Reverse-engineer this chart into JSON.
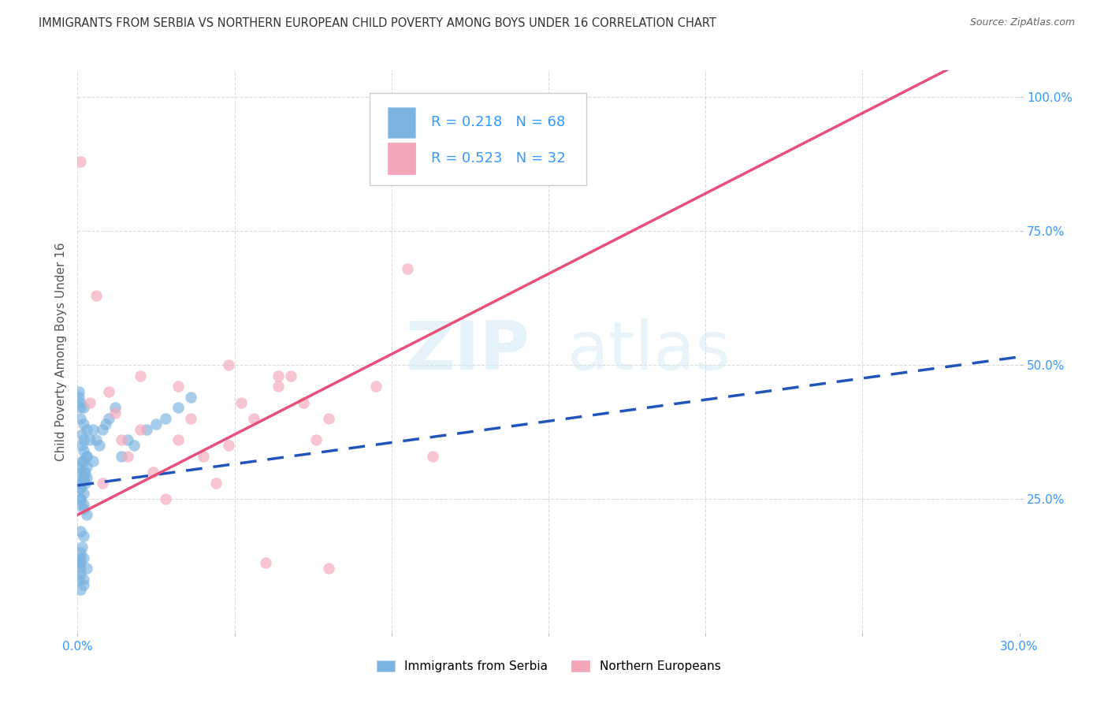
{
  "title": "IMMIGRANTS FROM SERBIA VS NORTHERN EUROPEAN CHILD POVERTY AMONG BOYS UNDER 16 CORRELATION CHART",
  "source": "Source: ZipAtlas.com",
  "ylabel": "Child Poverty Among Boys Under 16",
  "xlim": [
    0.0,
    0.3
  ],
  "ylim": [
    0.0,
    1.05
  ],
  "ytick_vals": [
    0.25,
    0.5,
    0.75,
    1.0
  ],
  "ytick_labels": [
    "25.0%",
    "50.0%",
    "75.0%",
    "100.0%"
  ],
  "xtick_vals": [
    0.0,
    0.05,
    0.1,
    0.15,
    0.2,
    0.25,
    0.3
  ],
  "xtick_labels": [
    "0.0%",
    "",
    "",
    "",
    "",
    "",
    "30.0%"
  ],
  "serbia_R": 0.218,
  "serbia_N": 68,
  "northern_R": 0.523,
  "northern_N": 32,
  "serbia_color": "#7ab3e0",
  "northern_color": "#f4a7b9",
  "serbia_line_color": "#2255bb",
  "northern_line_color": "#e8507a",
  "serbia_scatter_x": [
    0.0005,
    0.001,
    0.0008,
    0.0015,
    0.001,
    0.002,
    0.0012,
    0.0018,
    0.001,
    0.0005,
    0.002,
    0.0025,
    0.0015,
    0.003,
    0.002,
    0.0025,
    0.002,
    0.003,
    0.002,
    0.001,
    0.0005,
    0.001,
    0.0008,
    0.002,
    0.0015,
    0.001,
    0.003,
    0.002,
    0.001,
    0.002,
    0.002,
    0.003,
    0.002,
    0.001,
    0.0015,
    0.003,
    0.002,
    0.0005,
    0.002,
    0.001,
    0.005,
    0.004,
    0.003,
    0.006,
    0.005,
    0.008,
    0.007,
    0.01,
    0.012,
    0.009,
    0.0005,
    0.001,
    0.0008,
    0.0005,
    0.001,
    0.002,
    0.001,
    0.002,
    0.001,
    0.003,
    0.016,
    0.022,
    0.028,
    0.032,
    0.025,
    0.018,
    0.014,
    0.036
  ],
  "serbia_scatter_y": [
    0.28,
    0.3,
    0.25,
    0.32,
    0.27,
    0.3,
    0.28,
    0.29,
    0.24,
    0.31,
    0.32,
    0.28,
    0.35,
    0.29,
    0.26,
    0.3,
    0.34,
    0.31,
    0.23,
    0.27,
    0.44,
    0.43,
    0.42,
    0.18,
    0.16,
    0.19,
    0.22,
    0.24,
    0.25,
    0.29,
    0.36,
    0.38,
    0.39,
    0.4,
    0.37,
    0.33,
    0.42,
    0.45,
    0.14,
    0.13,
    0.38,
    0.36,
    0.33,
    0.36,
    0.32,
    0.38,
    0.35,
    0.4,
    0.42,
    0.39,
    0.1,
    0.11,
    0.08,
    0.13,
    0.12,
    0.09,
    0.14,
    0.1,
    0.15,
    0.12,
    0.36,
    0.38,
    0.4,
    0.42,
    0.39,
    0.35,
    0.33,
    0.44
  ],
  "northern_scatter_x": [
    0.001,
    0.004,
    0.006,
    0.008,
    0.01,
    0.012,
    0.014,
    0.016,
    0.02,
    0.024,
    0.028,
    0.032,
    0.036,
    0.04,
    0.044,
    0.048,
    0.052,
    0.056,
    0.06,
    0.064,
    0.068,
    0.072,
    0.076,
    0.08,
    0.02,
    0.032,
    0.048,
    0.064,
    0.08,
    0.095,
    0.105,
    0.113
  ],
  "northern_scatter_y": [
    0.88,
    0.43,
    0.63,
    0.28,
    0.45,
    0.41,
    0.36,
    0.33,
    0.38,
    0.3,
    0.25,
    0.36,
    0.4,
    0.33,
    0.28,
    0.35,
    0.43,
    0.4,
    0.13,
    0.46,
    0.48,
    0.43,
    0.36,
    0.4,
    0.48,
    0.46,
    0.5,
    0.48,
    0.12,
    0.46,
    0.68,
    0.33
  ],
  "watermark_zip": "ZIP",
  "watermark_atlas": "atlas",
  "background_color": "#ffffff",
  "grid_color": "#cccccc"
}
